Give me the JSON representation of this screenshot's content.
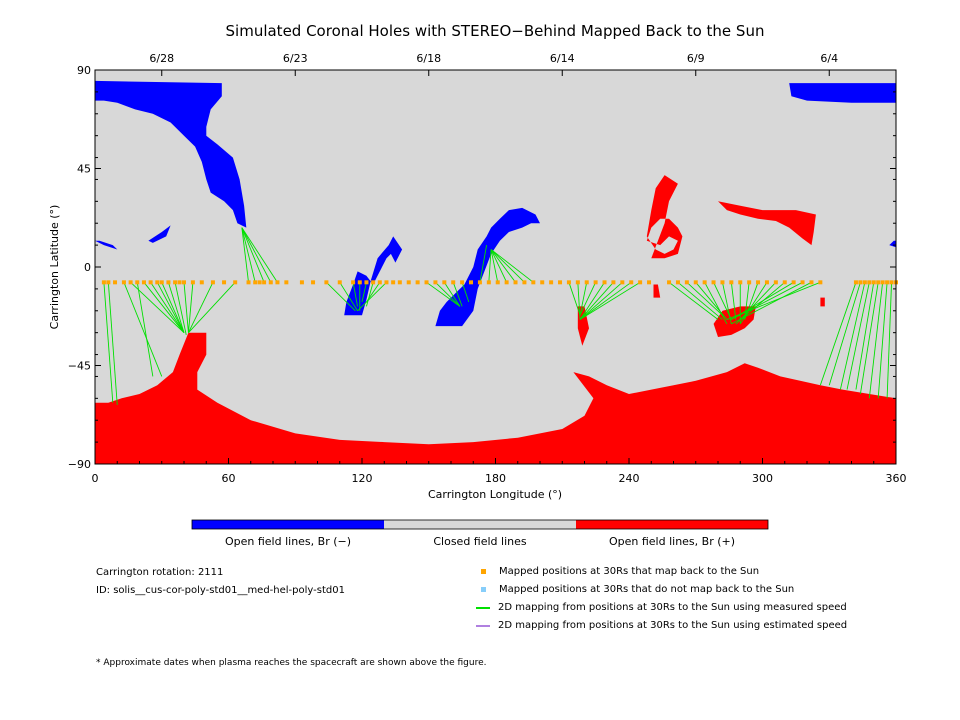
{
  "chart_data": {
    "type": "map",
    "title": "Simulated Coronal Holes with STEREO−Behind Mapped Back to the Sun",
    "xlabel": "Carrington Longitude (°)",
    "ylabel": "Carrington Latitude (°)",
    "xlim": [
      0,
      360
    ],
    "ylim": [
      -90,
      90
    ],
    "xticks": [
      0,
      60,
      120,
      180,
      240,
      300,
      360
    ],
    "yticks": [
      -90,
      -45,
      0,
      45,
      90
    ],
    "top_axis": [
      {
        "label": "6/28",
        "lon": 30
      },
      {
        "label": "6/23",
        "lon": 90
      },
      {
        "label": "6/18",
        "lon": 150
      },
      {
        "label": "6/14",
        "lon": 210
      },
      {
        "label": "6/9",
        "lon": 270
      },
      {
        "label": "6/4",
        "lon": 330
      }
    ],
    "colors": {
      "neg": "#0000ff",
      "closed": "#d8d8d8",
      "pos": "#ff0000",
      "mapped": "#ffa500",
      "unmapped": "#87cefa",
      "measured": "#00e000",
      "estimated": "#b080e0"
    },
    "regions": [
      {
        "polarity": "neg",
        "points": [
          [
            0,
            85
          ],
          [
            57,
            84
          ],
          [
            57,
            78
          ],
          [
            52,
            72
          ],
          [
            50,
            64
          ],
          [
            50,
            60
          ],
          [
            55,
            56
          ],
          [
            62,
            50
          ],
          [
            65,
            40
          ],
          [
            67,
            28
          ],
          [
            68,
            18
          ],
          [
            64,
            20
          ],
          [
            62,
            26
          ],
          [
            58,
            30
          ],
          [
            52,
            34
          ],
          [
            50,
            40
          ],
          [
            48,
            48
          ],
          [
            45,
            55
          ],
          [
            40,
            60
          ],
          [
            34,
            66
          ],
          [
            26,
            70
          ],
          [
            18,
            72
          ],
          [
            10,
            75
          ],
          [
            4,
            76
          ],
          [
            0,
            76
          ]
        ]
      },
      {
        "polarity": "neg",
        "points": [
          [
            312,
            84
          ],
          [
            360,
            84
          ],
          [
            360,
            75
          ],
          [
            340,
            75
          ],
          [
            320,
            76
          ],
          [
            313,
            78
          ]
        ]
      },
      {
        "polarity": "neg",
        "points": [
          [
            0,
            12
          ],
          [
            4,
            10
          ],
          [
            10,
            8
          ],
          [
            8,
            10
          ],
          [
            2,
            12
          ]
        ]
      },
      {
        "polarity": "neg",
        "points": [
          [
            24,
            12
          ],
          [
            30,
            16
          ],
          [
            34,
            19
          ],
          [
            32,
            14
          ],
          [
            26,
            11
          ]
        ]
      },
      {
        "polarity": "neg",
        "points": [
          [
            112,
            -22
          ],
          [
            120,
            -22
          ],
          [
            122,
            -15
          ],
          [
            124,
            -6
          ],
          [
            127,
            4
          ],
          [
            132,
            10
          ],
          [
            134,
            14
          ],
          [
            138,
            8
          ],
          [
            135,
            2
          ],
          [
            133,
            6
          ],
          [
            131,
            4
          ],
          [
            128,
            -2
          ],
          [
            125,
            -8
          ],
          [
            122,
            -4
          ],
          [
            118,
            -2
          ],
          [
            116,
            -8
          ],
          [
            113,
            -16
          ]
        ]
      },
      {
        "polarity": "neg",
        "points": [
          [
            153,
            -27
          ],
          [
            165,
            -27
          ],
          [
            170,
            -20
          ],
          [
            172,
            -10
          ],
          [
            175,
            -2
          ],
          [
            178,
            6
          ],
          [
            182,
            12
          ],
          [
            186,
            16
          ],
          [
            192,
            18
          ],
          [
            196,
            20
          ],
          [
            200,
            20
          ],
          [
            198,
            24
          ],
          [
            192,
            27
          ],
          [
            186,
            26
          ],
          [
            182,
            22
          ],
          [
            178,
            18
          ],
          [
            176,
            14
          ],
          [
            172,
            8
          ],
          [
            170,
            0
          ],
          [
            166,
            -8
          ],
          [
            162,
            -12
          ],
          [
            158,
            -16
          ],
          [
            155,
            -20
          ]
        ]
      },
      {
        "polarity": "neg",
        "points": [
          [
            359,
            12
          ],
          [
            360,
            12
          ],
          [
            360,
            9
          ],
          [
            357,
            10
          ]
        ]
      },
      {
        "polarity": "pos",
        "points": [
          [
            250,
            4
          ],
          [
            256,
            4
          ],
          [
            262,
            6
          ],
          [
            264,
            14
          ],
          [
            262,
            18
          ],
          [
            258,
            22
          ],
          [
            254,
            22
          ],
          [
            250,
            18
          ],
          [
            248,
            12
          ],
          [
            254,
            10
          ],
          [
            258,
            14
          ],
          [
            262,
            12
          ],
          [
            260,
            8
          ],
          [
            256,
            6
          ],
          [
            252,
            8
          ],
          [
            248,
            14
          ],
          [
            250,
            26
          ],
          [
            252,
            36
          ],
          [
            256,
            42
          ],
          [
            262,
            38
          ],
          [
            258,
            30
          ],
          [
            256,
            20
          ]
        ]
      },
      {
        "polarity": "pos",
        "points": [
          [
            280,
            30
          ],
          [
            290,
            28
          ],
          [
            300,
            26
          ],
          [
            315,
            26
          ],
          [
            324,
            24
          ],
          [
            323,
            16
          ],
          [
            322,
            10
          ],
          [
            318,
            13
          ],
          [
            312,
            18
          ],
          [
            306,
            21
          ],
          [
            298,
            22
          ],
          [
            290,
            24
          ],
          [
            284,
            26
          ]
        ]
      },
      {
        "polarity": "pos",
        "points": [
          [
            217,
            -18
          ],
          [
            220,
            -18
          ],
          [
            222,
            -28
          ],
          [
            219,
            -36
          ],
          [
            217,
            -28
          ]
        ]
      },
      {
        "polarity": "pos",
        "points": [
          [
            251,
            -8
          ],
          [
            253,
            -8
          ],
          [
            254,
            -14
          ],
          [
            251,
            -14
          ]
        ]
      },
      {
        "polarity": "pos",
        "points": [
          [
            280,
            -32
          ],
          [
            286,
            -31
          ],
          [
            292,
            -28
          ],
          [
            296,
            -24
          ],
          [
            297,
            -18
          ],
          [
            290,
            -18
          ],
          [
            282,
            -20
          ],
          [
            278,
            -26
          ]
        ]
      },
      {
        "polarity": "pos",
        "points": [
          [
            326,
            -14
          ],
          [
            328,
            -14
          ],
          [
            328,
            -18
          ],
          [
            326,
            -18
          ]
        ]
      },
      {
        "polarity": "pos",
        "points": [
          [
            0,
            -90
          ],
          [
            360,
            -90
          ],
          [
            360,
            -60
          ],
          [
            336,
            -56
          ],
          [
            326,
            -54
          ],
          [
            308,
            -50
          ],
          [
            298,
            -46
          ],
          [
            292,
            -44
          ],
          [
            284,
            -48
          ],
          [
            270,
            -52
          ],
          [
            260,
            -54
          ],
          [
            250,
            -56
          ],
          [
            240,
            -58
          ],
          [
            230,
            -54
          ],
          [
            222,
            -50
          ],
          [
            215,
            -48
          ],
          [
            224,
            -60
          ],
          [
            220,
            -68
          ],
          [
            210,
            -74
          ],
          [
            190,
            -78
          ],
          [
            170,
            -80
          ],
          [
            150,
            -81
          ],
          [
            130,
            -80
          ],
          [
            110,
            -79
          ],
          [
            90,
            -76
          ],
          [
            70,
            -70
          ],
          [
            55,
            -62
          ],
          [
            46,
            -56
          ],
          [
            46,
            -48
          ],
          [
            50,
            -40
          ],
          [
            50,
            -30
          ],
          [
            42,
            -30
          ],
          [
            38,
            -40
          ],
          [
            35,
            -48
          ],
          [
            28,
            -54
          ],
          [
            20,
            -58
          ],
          [
            12,
            -60
          ],
          [
            6,
            -62
          ],
          [
            0,
            -62
          ]
        ]
      }
    ],
    "mapped_lat": -7,
    "mapped_points": [
      4,
      6,
      9,
      13,
      16,
      19,
      22,
      25,
      28,
      30,
      33,
      36,
      38,
      40,
      44,
      48,
      53,
      58,
      63,
      69,
      72,
      74,
      76,
      79,
      82,
      86,
      93,
      98,
      104,
      110,
      116,
      119,
      122,
      125,
      128,
      131,
      134,
      137,
      141,
      145,
      149,
      153,
      157,
      161,
      165,
      169,
      173,
      177,
      181,
      185,
      189,
      193,
      197,
      201,
      205,
      209,
      213,
      217,
      221,
      225,
      229,
      233,
      237,
      241,
      245,
      249,
      258,
      262,
      266,
      270,
      274,
      278,
      282,
      286,
      290,
      294,
      298,
      302,
      306,
      310,
      314,
      318,
      322,
      326,
      342,
      344,
      346,
      348,
      350,
      352,
      354,
      356,
      358,
      360
    ],
    "measured_lines": [
      [
        4,
        -7,
        8,
        -62
      ],
      [
        6,
        -7,
        10,
        -63
      ],
      [
        13,
        -7,
        30,
        -50
      ],
      [
        16,
        -7,
        40,
        -30
      ],
      [
        19,
        -7,
        26,
        -50
      ],
      [
        22,
        -7,
        40,
        -30
      ],
      [
        25,
        -7,
        40,
        -30
      ],
      [
        28,
        -7,
        40,
        -30
      ],
      [
        30,
        -7,
        40,
        -30
      ],
      [
        33,
        -7,
        40,
        -30
      ],
      [
        36,
        -7,
        41,
        -31
      ],
      [
        40,
        -7,
        42,
        -30
      ],
      [
        44,
        -7,
        42,
        -30
      ],
      [
        53,
        -7,
        42,
        -30
      ],
      [
        63,
        -7,
        42,
        -30
      ],
      [
        69,
        -7,
        66,
        18
      ],
      [
        72,
        -7,
        66,
        18
      ],
      [
        76,
        -7,
        66,
        18
      ],
      [
        79,
        -7,
        66,
        18
      ],
      [
        82,
        -7,
        66,
        18
      ],
      [
        104,
        -7,
        117,
        -20
      ],
      [
        110,
        -7,
        118,
        -20
      ],
      [
        116,
        -7,
        118,
        -18
      ],
      [
        119,
        -7,
        119,
        -20
      ],
      [
        122,
        -7,
        120,
        -16
      ],
      [
        125,
        -7,
        122,
        -18
      ],
      [
        128,
        -7,
        122,
        -16
      ],
      [
        131,
        -7,
        118,
        -20
      ],
      [
        149,
        -7,
        164,
        -18
      ],
      [
        153,
        -7,
        164,
        -18
      ],
      [
        157,
        -7,
        164,
        -18
      ],
      [
        161,
        -7,
        165,
        -18
      ],
      [
        165,
        -7,
        168,
        -16
      ],
      [
        173,
        -7,
        176,
        10
      ],
      [
        177,
        -7,
        178,
        8
      ],
      [
        181,
        -7,
        178,
        8
      ],
      [
        185,
        -7,
        178,
        8
      ],
      [
        189,
        -7,
        178,
        8
      ],
      [
        193,
        -7,
        178,
        8
      ],
      [
        197,
        -7,
        178,
        8
      ],
      [
        213,
        -7,
        218,
        -22
      ],
      [
        217,
        -7,
        218,
        -24
      ],
      [
        221,
        -7,
        218,
        -22
      ],
      [
        225,
        -7,
        218,
        -22
      ],
      [
        229,
        -7,
        218,
        -24
      ],
      [
        233,
        -7,
        218,
        -24
      ],
      [
        237,
        -7,
        218,
        -24
      ],
      [
        241,
        -7,
        218,
        -24
      ],
      [
        245,
        -7,
        218,
        -24
      ],
      [
        258,
        -7,
        280,
        -24
      ],
      [
        262,
        -7,
        282,
        -24
      ],
      [
        266,
        -7,
        282,
        -22
      ],
      [
        270,
        -7,
        284,
        -24
      ],
      [
        274,
        -7,
        284,
        -26
      ],
      [
        278,
        -7,
        286,
        -24
      ],
      [
        282,
        -7,
        286,
        -26
      ],
      [
        286,
        -7,
        288,
        -24
      ],
      [
        290,
        -7,
        290,
        -26
      ],
      [
        294,
        -7,
        292,
        -24
      ],
      [
        298,
        -7,
        292,
        -24
      ],
      [
        302,
        -7,
        290,
        -26
      ],
      [
        306,
        -7,
        290,
        -24
      ],
      [
        310,
        -7,
        288,
        -26
      ],
      [
        314,
        -7,
        286,
        -24
      ],
      [
        318,
        -7,
        286,
        -24
      ],
      [
        322,
        -7,
        286,
        -26
      ],
      [
        326,
        -7,
        284,
        -24
      ],
      [
        342,
        -7,
        326,
        -54
      ],
      [
        344,
        -7,
        330,
        -54
      ],
      [
        346,
        -7,
        335,
        -56
      ],
      [
        348,
        -7,
        338,
        -56
      ],
      [
        350,
        -7,
        342,
        -56
      ],
      [
        352,
        -7,
        344,
        -58
      ],
      [
        354,
        -7,
        348,
        -60
      ],
      [
        356,
        -7,
        352,
        -60
      ],
      [
        358,
        -7,
        356,
        -60
      ],
      [
        360,
        -7,
        360,
        -60
      ]
    ],
    "colorbar": [
      {
        "label": "Open field lines, Br (−)",
        "color": "#0000ff"
      },
      {
        "label": "Closed field lines",
        "color": "#d8d8d8"
      },
      {
        "label": "Open field lines, Br (+)",
        "color": "#ff0000"
      }
    ]
  },
  "info": {
    "rotation": "Carrington rotation: 2111",
    "id": "ID: solis__cus-cor-poly-std01__med-hel-poly-std01",
    "footnote": "* Approximate dates when plasma reaches the spacecraft are shown above the figure."
  },
  "legend": [
    {
      "label": "Mapped positions at 30Rs that map back to the Sun",
      "kind": "square",
      "color": "#ffa500"
    },
    {
      "label": "Mapped positions at 30Rs that do not map back to the Sun",
      "kind": "square",
      "color": "#87cefa"
    },
    {
      "label": "2D mapping from positions at 30Rs to the Sun using measured speed",
      "kind": "line",
      "color": "#00e000"
    },
    {
      "label": "2D mapping from positions at 30Rs to the Sun using estimated speed",
      "kind": "line",
      "color": "#b080e0"
    }
  ]
}
